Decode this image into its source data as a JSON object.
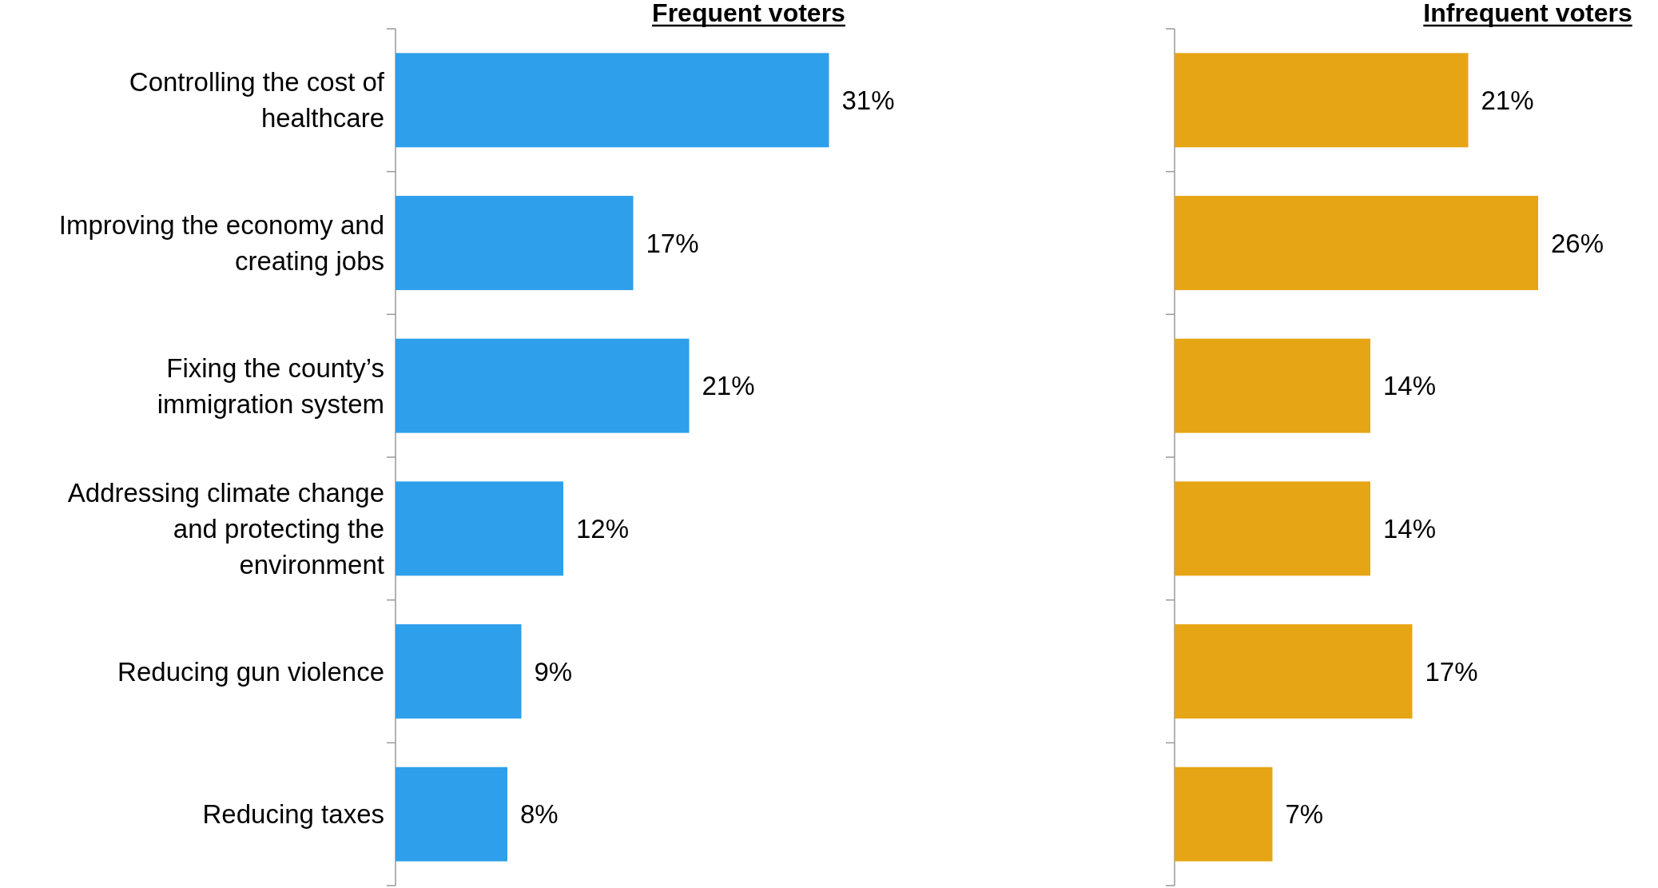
{
  "chart_data": [
    {
      "type": "bar",
      "orientation": "horizontal",
      "title": "Frequent voters",
      "categories": [
        "Controlling the cost of healthcare",
        "Improving the economy and creating jobs",
        "Fixing the county’s immigration system",
        "Addressing climate change and protecting the environment",
        "Reducing gun violence",
        "Reducing taxes"
      ],
      "values": [
        31,
        17,
        21,
        12,
        9,
        8
      ],
      "color": "#2e9fea",
      "data_labels": true,
      "value_labels": [
        "31%",
        "17%",
        "21%",
        "12%",
        "9%",
        "8%"
      ]
    },
    {
      "type": "bar",
      "orientation": "horizontal",
      "title": "Infrequent voters",
      "categories": [
        null,
        null,
        null,
        null,
        null,
        null
      ],
      "values": [
        21,
        26,
        14,
        14,
        17,
        7
      ],
      "color": "#e6a514",
      "data_labels": true,
      "value_labels": [
        "21%",
        "26%",
        "14%",
        "14%",
        "17%",
        "7%"
      ]
    }
  ]
}
